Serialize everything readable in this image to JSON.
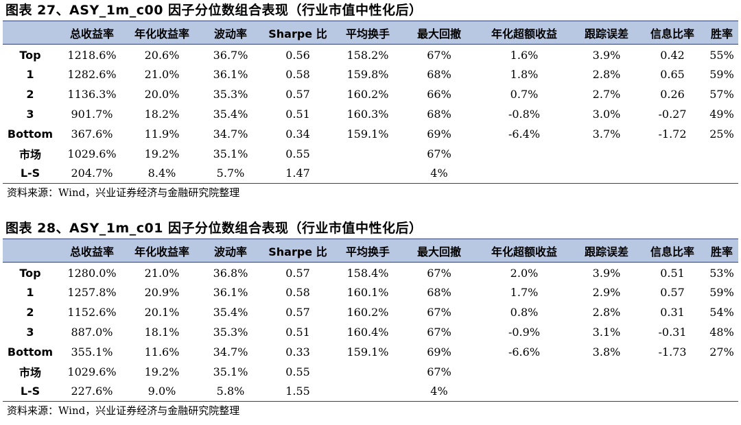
{
  "tables": [
    {
      "title": "图表 27、ASY_1m_c00 因子分位数组合表现（行业市值中性化后）",
      "headers": [
        "",
        "总收益率",
        "年化收益率",
        "波动率",
        "Sharpe 比",
        "平均换手",
        "最大回撤",
        "年化超额收益",
        "跟踪误差",
        "信息比率",
        "胜率"
      ],
      "rows": [
        [
          "Top",
          "1218.6%",
          "20.6%",
          "36.7%",
          "0.56",
          "158.2%",
          "67%",
          "1.6%",
          "3.9%",
          "0.42",
          "55%"
        ],
        [
          "1",
          "1282.6%",
          "21.0%",
          "36.1%",
          "0.58",
          "159.8%",
          "68%",
          "1.8%",
          "2.8%",
          "0.65",
          "59%"
        ],
        [
          "2",
          "1136.3%",
          "20.0%",
          "35.3%",
          "0.57",
          "160.2%",
          "66%",
          "0.7%",
          "2.7%",
          "0.26",
          "57%"
        ],
        [
          "3",
          "901.7%",
          "18.2%",
          "35.4%",
          "0.51",
          "160.3%",
          "68%",
          "-0.8%",
          "3.0%",
          "-0.27",
          "49%"
        ],
        [
          "Bottom",
          "367.6%",
          "11.9%",
          "34.7%",
          "0.34",
          "159.1%",
          "69%",
          "-6.4%",
          "3.7%",
          "-1.72",
          "25%"
        ],
        [
          "市场",
          "1029.6%",
          "19.2%",
          "35.1%",
          "0.55",
          "",
          "67%",
          "",
          "",
          "",
          ""
        ],
        [
          "L-S",
          "204.7%",
          "8.4%",
          "5.7%",
          "1.47",
          "",
          "4%",
          "",
          "",
          "",
          ""
        ]
      ],
      "source": "资料来源：Wind，兴业证券经济与金融研究院整理"
    },
    {
      "title": "图表 28、ASY_1m_c01 因子分位数组合表现（行业市值中性化后）",
      "headers": [
        "",
        "总收益率",
        "年化收益率",
        "波动率",
        "Sharpe 比",
        "平均换手",
        "最大回撤",
        "年化超额收益",
        "跟踪误差",
        "信息比率",
        "胜率"
      ],
      "rows": [
        [
          "Top",
          "1280.0%",
          "21.0%",
          "36.8%",
          "0.57",
          "158.4%",
          "67%",
          "2.0%",
          "3.9%",
          "0.51",
          "53%"
        ],
        [
          "1",
          "1257.8%",
          "20.9%",
          "36.1%",
          "0.58",
          "160.1%",
          "68%",
          "1.7%",
          "2.9%",
          "0.57",
          "59%"
        ],
        [
          "2",
          "1152.6%",
          "20.1%",
          "35.4%",
          "0.57",
          "160.2%",
          "67%",
          "0.8%",
          "2.8%",
          "0.31",
          "54%"
        ],
        [
          "3",
          "887.0%",
          "18.1%",
          "35.3%",
          "0.51",
          "160.4%",
          "67%",
          "-0.9%",
          "3.1%",
          "-0.31",
          "48%"
        ],
        [
          "Bottom",
          "355.1%",
          "11.6%",
          "34.7%",
          "0.33",
          "159.1%",
          "69%",
          "-6.6%",
          "3.8%",
          "-1.73",
          "27%"
        ],
        [
          "市场",
          "1029.6%",
          "19.2%",
          "35.1%",
          "0.55",
          "",
          "67%",
          "",
          "",
          "",
          ""
        ],
        [
          "L-S",
          "227.6%",
          "9.0%",
          "5.8%",
          "1.55",
          "",
          "4%",
          "",
          "",
          "",
          ""
        ]
      ],
      "source": "资料来源：Wind，兴业证券经济与金融研究院整理"
    }
  ]
}
